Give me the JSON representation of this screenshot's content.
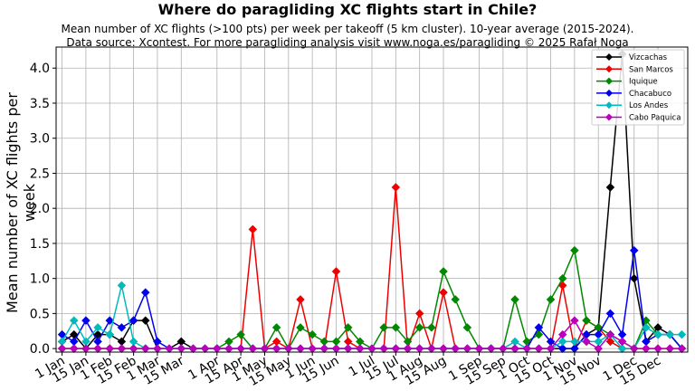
{
  "chart_data": {
    "type": "line",
    "title": "Where do paragliding XC flights start in Chile?",
    "subtitle_lines": [
      "Mean number of XC flights (>100 pts) per week per takeoff (5 km cluster). 10-year average (2015-2024).",
      "Data source: Xcontest. For more paragliding analysis visit www.noga.es/paragliding © 2025 Rafał Noga"
    ],
    "xlabel": "",
    "ylabel": "Mean number of XC flights per week",
    "ylim": [
      -0.05,
      4.3
    ],
    "yticks": [
      0.0,
      0.5,
      1.0,
      1.5,
      2.0,
      2.5,
      3.0,
      3.5,
      4.0
    ],
    "ytick_labels": [
      "0.0",
      "0.5",
      "1.0",
      "1.5",
      "2.0",
      "2.5",
      "3.0",
      "3.5",
      "4.0"
    ],
    "x_weeks": [
      1,
      2,
      3,
      4,
      5,
      6,
      7,
      8,
      9,
      10,
      11,
      12,
      13,
      14,
      15,
      16,
      17,
      18,
      19,
      20,
      21,
      22,
      23,
      24,
      25,
      26,
      27,
      28,
      29,
      30,
      31,
      32,
      33,
      34,
      35,
      36,
      37,
      38,
      39,
      40,
      41,
      42,
      43,
      44,
      45,
      46,
      47,
      48,
      49,
      50,
      51,
      52,
      53
    ],
    "xtick_labels": [
      "1 Jan",
      "15 Jan",
      "1 Feb",
      "15 Feb",
      "1 Mar",
      "15 Mar",
      "1 Apr",
      "15 Apr",
      "1 May",
      "15 May",
      "1 Jun",
      "15 Jun",
      "1 Jul",
      "15 Jul",
      "1 Aug",
      "15 Aug",
      "1 Sep",
      "15 Sep",
      "1 Oct",
      "15 Oct",
      "1 Nov",
      "15 Nov",
      "1 Dec",
      "15 Dec"
    ],
    "xtick_weeks": [
      1,
      3,
      5,
      7,
      9,
      11,
      14,
      16,
      18,
      20,
      22,
      24,
      27,
      29,
      31,
      33,
      36,
      38,
      40,
      42,
      44,
      46,
      49,
      51
    ],
    "grid": true,
    "legend_position": "top-right",
    "series": [
      {
        "name": "Vizcachas",
        "color": "#000000",
        "values": [
          0.1,
          0.2,
          0,
          0.2,
          0.2,
          0.1,
          0.4,
          0.4,
          0,
          0,
          0.1,
          0,
          0,
          0,
          0,
          0,
          0,
          0,
          0,
          0,
          0,
          0,
          0,
          0,
          0,
          0,
          0,
          0,
          0,
          0,
          0,
          0,
          0,
          0,
          0,
          0,
          0,
          0,
          0,
          0,
          0,
          0,
          0,
          0,
          0.2,
          0.3,
          2.3,
          4.2,
          1.0,
          0.1,
          0.3,
          0.2,
          0
        ]
      },
      {
        "name": "San Marcos",
        "color": "#ee0000",
        "values": [
          0,
          0,
          0,
          0,
          0,
          0,
          0,
          0,
          0,
          0,
          0,
          0,
          0,
          0,
          0,
          0,
          1.7,
          0,
          0.1,
          0,
          0.7,
          0,
          0,
          1.1,
          0.1,
          0,
          0,
          0,
          2.3,
          0,
          0.5,
          0,
          0.8,
          0,
          0,
          0,
          0,
          0,
          0,
          0,
          0,
          0,
          0.9,
          0,
          0.4,
          0.3,
          0.1,
          0,
          0,
          0,
          0,
          0,
          0
        ]
      },
      {
        "name": "Iquique",
        "color": "#008800",
        "values": [
          0,
          0,
          0,
          0,
          0,
          0,
          0,
          0,
          0,
          0,
          0,
          0,
          0,
          0,
          0.1,
          0.2,
          0,
          0,
          0.3,
          0,
          0.3,
          0.2,
          0.1,
          0.1,
          0.3,
          0.1,
          0,
          0.3,
          0.3,
          0.1,
          0.3,
          0.3,
          1.1,
          0.7,
          0.3,
          0,
          0,
          0,
          0.7,
          0.1,
          0.2,
          0.7,
          1.0,
          1.4,
          0.4,
          0.3,
          0.2,
          0.1,
          0,
          0.4,
          0.2,
          0.2,
          0
        ]
      },
      {
        "name": "Chacabuco",
        "color": "#0000ee",
        "values": [
          0.2,
          0.1,
          0.4,
          0.1,
          0.4,
          0.3,
          0.4,
          0.8,
          0.1,
          0,
          0,
          0,
          0,
          0,
          0,
          0,
          0,
          0,
          0,
          0,
          0,
          0,
          0,
          0,
          0,
          0,
          0,
          0,
          0,
          0,
          0,
          0,
          0,
          0,
          0,
          0,
          0,
          0,
          0,
          0,
          0.3,
          0.1,
          0,
          0,
          0.2,
          0.2,
          0.5,
          0.2,
          1.4,
          0.1,
          0.2,
          0.2,
          0
        ]
      },
      {
        "name": "Los Andes",
        "color": "#00bbbb",
        "values": [
          0.1,
          0.4,
          0.1,
          0.3,
          0.2,
          0.9,
          0.1,
          0,
          0,
          0,
          0,
          0,
          0,
          0,
          0,
          0,
          0,
          0,
          0,
          0,
          0,
          0,
          0,
          0,
          0,
          0,
          0,
          0,
          0,
          0,
          0,
          0,
          0,
          0,
          0,
          0,
          0,
          0,
          0.1,
          0,
          0,
          0,
          0.1,
          0.1,
          0.1,
          0.1,
          0.2,
          0,
          0,
          0.3,
          0.2,
          0.2,
          0.2
        ]
      },
      {
        "name": "Cabo Paquica",
        "color": "#bb00bb",
        "values": [
          0,
          0,
          0,
          0,
          0,
          0,
          0,
          0,
          0,
          0,
          0,
          0,
          0,
          0,
          0,
          0,
          0,
          0,
          0,
          0,
          0,
          0,
          0,
          0,
          0,
          0,
          0,
          0,
          0,
          0,
          0,
          0,
          0,
          0,
          0,
          0,
          0,
          0,
          0,
          0,
          0,
          0,
          0.2,
          0.4,
          0.1,
          0,
          0.2,
          0.1,
          0,
          0,
          0,
          0,
          0
        ]
      }
    ]
  }
}
